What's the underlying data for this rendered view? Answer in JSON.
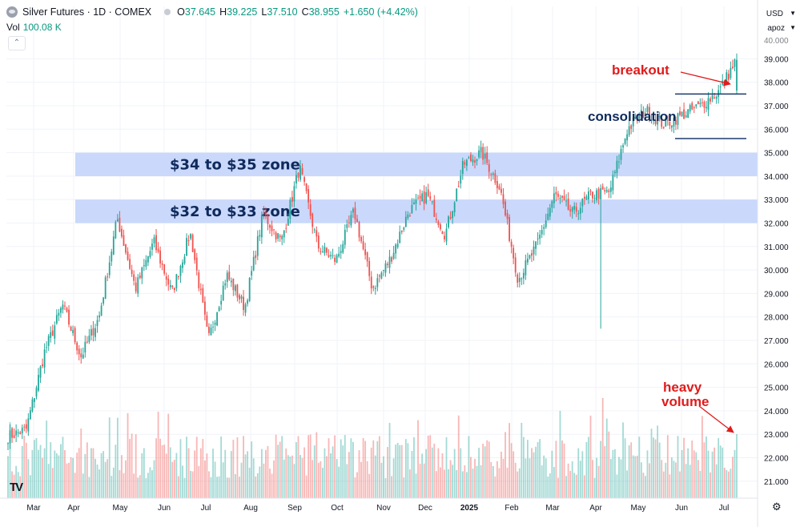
{
  "header": {
    "symbol": "Silver Futures · 1D · COMEX",
    "open_label": "O",
    "open": "37.645",
    "high_label": "H",
    "high": "39.225",
    "low_label": "L",
    "low": "37.510",
    "close_label": "C",
    "close": "38.955",
    "change": "+1.650 (+4.42%)"
  },
  "volume": {
    "label": "Vol",
    "value": "100.08 K"
  },
  "currency": "USD",
  "scale_mode": "apoz",
  "logo": "TV",
  "annotations": {
    "breakout": "breakout",
    "consolidation": "consolidation",
    "heavy_volume_1": "heavy",
    "heavy_volume_2": "volume"
  },
  "icons": {
    "settings": "gear-icon",
    "collapse": "chevron-up-icon",
    "logo": "tradingview-logo-icon"
  },
  "colors": {
    "up": "#26a69a",
    "down": "#ef5350",
    "zone": "#c9d8fb",
    "annot_red": "#e01b1b",
    "annot_navy": "#0f2a5c"
  },
  "chart_data": {
    "type": "candlestick",
    "x_tick_labels": [
      "Mar",
      "Apr",
      "May",
      "Jun",
      "Jul",
      "Aug",
      "Sep",
      "Oct",
      "Nov",
      "Dec",
      "2025",
      "Feb",
      "Mar",
      "Apr",
      "May",
      "Jun",
      "Jul"
    ],
    "y_tick_labels": [
      "21.000",
      "22.000",
      "23.000",
      "24.000",
      "25.000",
      "26.000",
      "27.000",
      "28.000",
      "29.000",
      "30.000",
      "31.000",
      "32.000",
      "33.000",
      "34.000",
      "35.000",
      "36.000",
      "37.000",
      "38.000",
      "39.000"
    ],
    "ylim": [
      20.3,
      40.0
    ],
    "zones": [
      {
        "label": "$34 to $35 zone",
        "low": 34,
        "high": 35
      },
      {
        "label": "$32 to $33 zone",
        "low": 32,
        "high": 33
      }
    ],
    "consolidation_range": {
      "low": 35.6,
      "high": 37.5
    },
    "keypoints": [
      {
        "x": "Feb 2024",
        "price": 22.9
      },
      {
        "x": "Mar 2024",
        "price": 23.2
      },
      {
        "x": "Apr 2024",
        "price": 26.5
      },
      {
        "x": "Apr 2024",
        "price": 28.5
      },
      {
        "x": "Apr 2024",
        "price": 26.3
      },
      {
        "x": "May 2024",
        "price": 28.0
      },
      {
        "x": "May 2024",
        "price": 32.2
      },
      {
        "x": "Jun 2024",
        "price": 29.2
      },
      {
        "x": "Jun 2024",
        "price": 31.2
      },
      {
        "x": "Jul 2024",
        "price": 29.0
      },
      {
        "x": "Jul 2024",
        "price": 31.6
      },
      {
        "x": "Aug 2024",
        "price": 27.0
      },
      {
        "x": "Sep 2024",
        "price": 29.8
      },
      {
        "x": "Sep 2024",
        "price": 28.4
      },
      {
        "x": "Oct 2024",
        "price": 32.4
      },
      {
        "x": "Oct 2024",
        "price": 31.2
      },
      {
        "x": "Oct 2024",
        "price": 34.4
      },
      {
        "x": "Nov 2024",
        "price": 31.0
      },
      {
        "x": "Nov 2024",
        "price": 30.4
      },
      {
        "x": "Dec 2024",
        "price": 32.5
      },
      {
        "x": "Dec 2024",
        "price": 29.2
      },
      {
        "x": "Jan 2025",
        "price": 30.5
      },
      {
        "x": "Feb 2025",
        "price": 32.5
      },
      {
        "x": "Feb 2025",
        "price": 33.2
      },
      {
        "x": "Mar 2025",
        "price": 31.5
      },
      {
        "x": "Mar 2025",
        "price": 34.5
      },
      {
        "x": "Apr 2025",
        "price": 35.0
      },
      {
        "x": "Apr 2025",
        "price": 33.5
      },
      {
        "x": "Apr 2025",
        "price": 29.6
      },
      {
        "x": "Apr 2025",
        "price": 31.0
      },
      {
        "x": "May 2025",
        "price": 33.2
      },
      {
        "x": "May 2025",
        "price": 32.4
      },
      {
        "x": "May 2025",
        "price": 33.2
      },
      {
        "x": "Jun 2025",
        "price": 33.3
      },
      {
        "x": "Jun 2025",
        "price": 36.0
      },
      {
        "x": "Jun 2025",
        "price": 36.8
      },
      {
        "x": "Jun 2025",
        "price": 36.2
      },
      {
        "x": "Jul 2025",
        "price": 36.6
      },
      {
        "x": "Jul 2025",
        "price": 37.0
      },
      {
        "x": "Jul 2025",
        "price": 37.6
      },
      {
        "x": "Jul 2025",
        "price": 38.96
      }
    ],
    "last": {
      "open": 37.645,
      "high": 39.225,
      "low": 37.51,
      "close": 38.955
    }
  }
}
